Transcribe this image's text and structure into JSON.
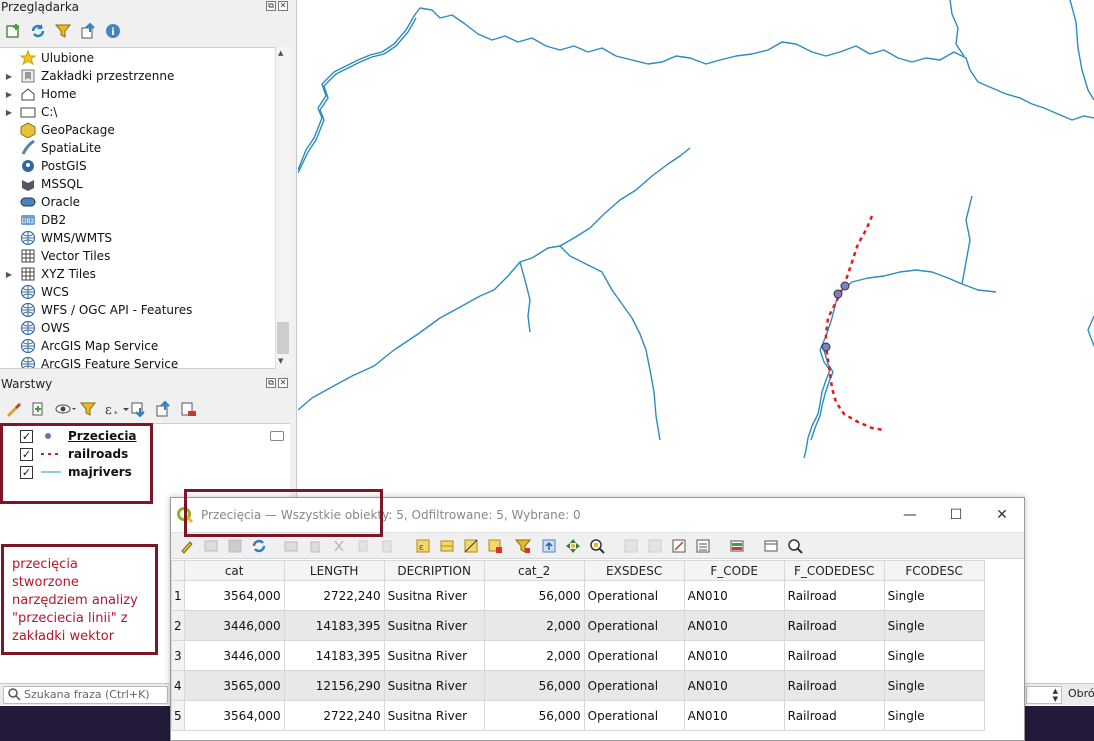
{
  "browser_panel": {
    "title": "Przeglądarka",
    "items": [
      {
        "label": "Ulubione",
        "icon": "star-icon",
        "expandable": false
      },
      {
        "label": "Zakładki przestrzenne",
        "icon": "bookmark-icon",
        "expandable": true
      },
      {
        "label": "Home",
        "icon": "home-icon",
        "expandable": true
      },
      {
        "label": "C:\\",
        "icon": "drive-icon",
        "expandable": true
      },
      {
        "label": "GeoPackage",
        "icon": "geopackage-icon",
        "expandable": false
      },
      {
        "label": "SpatiaLite",
        "icon": "spatialite-icon",
        "expandable": false
      },
      {
        "label": "PostGIS",
        "icon": "postgis-icon",
        "expandable": false
      },
      {
        "label": "MSSQL",
        "icon": "mssql-icon",
        "expandable": false
      },
      {
        "label": "Oracle",
        "icon": "oracle-icon",
        "expandable": false
      },
      {
        "label": "DB2",
        "icon": "db2-icon",
        "expandable": false
      },
      {
        "label": "WMS/WMTS",
        "icon": "globe-icon",
        "expandable": false
      },
      {
        "label": "Vector Tiles",
        "icon": "grid-icon",
        "expandable": false
      },
      {
        "label": "XYZ Tiles",
        "icon": "grid-icon",
        "expandable": true
      },
      {
        "label": "WCS",
        "icon": "globe-icon",
        "expandable": false
      },
      {
        "label": "WFS / OGC API - Features",
        "icon": "globe-icon",
        "expandable": false
      },
      {
        "label": "OWS",
        "icon": "globe-icon",
        "expandable": false
      },
      {
        "label": "ArcGIS Map Service",
        "icon": "globe-icon",
        "expandable": false
      },
      {
        "label": "ArcGIS Feature Service",
        "icon": "globe-icon",
        "expandable": false
      }
    ]
  },
  "layers_panel": {
    "title": "Warstwy",
    "layers": [
      {
        "name": "Przeciecia",
        "checked": true,
        "symbol": "point"
      },
      {
        "name": "railroads",
        "checked": true,
        "symbol": "dashed-line"
      },
      {
        "name": "majrivers",
        "checked": true,
        "symbol": "line"
      }
    ]
  },
  "annotation_note": "przecięcia stworzone narzędziem analizy \"przeciecia linii\" z zakładki wektor",
  "search": {
    "placeholder": "Szukana fraza (Ctrl+K)"
  },
  "status_right_label": "Obró",
  "attribute_table": {
    "title": "Przecięcia — Wszystkie obiekty: 5, Odfiltrowane: 5, Wybrane: 0",
    "window_controls": {
      "minimize": "—",
      "maximize": "☐",
      "close": "✕"
    },
    "columns": [
      "cat",
      "LENGTH",
      "DECRIPTION",
      "cat_2",
      "EXSDESC",
      "F_CODE",
      "F_CODEDESC",
      "FCODESC"
    ],
    "rows": [
      {
        "id": "1",
        "cells": [
          "3564,000",
          "2722,240",
          "Susitna River",
          "56,000",
          "Operational",
          "AN010",
          "Railroad",
          "Single"
        ]
      },
      {
        "id": "2",
        "cells": [
          "3446,000",
          "14183,395",
          "Susitna River",
          "2,000",
          "Operational",
          "AN010",
          "Railroad",
          "Single"
        ]
      },
      {
        "id": "3",
        "cells": [
          "3446,000",
          "14183,395",
          "Susitna River",
          "2,000",
          "Operational",
          "AN010",
          "Railroad",
          "Single"
        ]
      },
      {
        "id": "4",
        "cells": [
          "3565,000",
          "12156,290",
          "Susitna River",
          "56,000",
          "Operational",
          "AN010",
          "Railroad",
          "Single"
        ]
      },
      {
        "id": "5",
        "cells": [
          "3564,000",
          "2722,240",
          "Susitna River",
          "56,000",
          "Operational",
          "AN010",
          "Railroad",
          "Single"
        ]
      }
    ]
  },
  "colors": {
    "river": "#2b8cbe",
    "railroad": "#e31a1c",
    "intersection_point": "#7b7fc4",
    "annotation": "#7d1727",
    "annotation_text": "#b7152c"
  }
}
